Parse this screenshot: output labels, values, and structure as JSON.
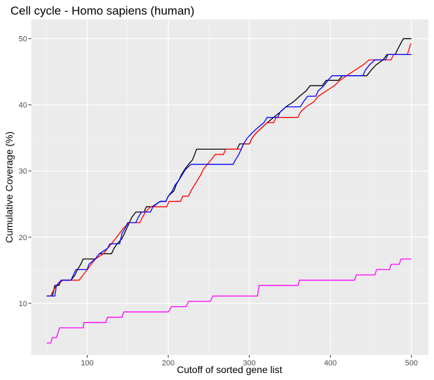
{
  "chart_data": {
    "type": "line",
    "title": "Cell cycle - Homo sapiens (human)",
    "xlabel": "Cutoff of sorted gene list",
    "ylabel": "Cumulative Coverage (%)",
    "xlim": [
      31,
      521
    ],
    "ylim": [
      2.2,
      52.9
    ],
    "x_ticks": [
      100,
      200,
      300,
      400,
      500
    ],
    "y_ticks": [
      10,
      20,
      30,
      40,
      50
    ],
    "grid": true,
    "legend": "none",
    "series": [
      {
        "color": "#000000",
        "points": [
          [
            50,
            11.1
          ],
          [
            57,
            11.1
          ],
          [
            60,
            12.7
          ],
          [
            65,
            12.7
          ],
          [
            68,
            13.5
          ],
          [
            80,
            13.5
          ],
          [
            85,
            14.3
          ],
          [
            88,
            15.1
          ],
          [
            92,
            15.9
          ],
          [
            95,
            16.7
          ],
          [
            110,
            16.7
          ],
          [
            115,
            17.5
          ],
          [
            130,
            17.5
          ],
          [
            133,
            18.3
          ],
          [
            137,
            19.0
          ],
          [
            143,
            19.8
          ],
          [
            146,
            20.6
          ],
          [
            149,
            21.4
          ],
          [
            152,
            22.2
          ],
          [
            155,
            23.0
          ],
          [
            160,
            23.8
          ],
          [
            170,
            23.8
          ],
          [
            173,
            24.6
          ],
          [
            180,
            24.6
          ],
          [
            190,
            25.4
          ],
          [
            197,
            25.4
          ],
          [
            200,
            26.2
          ],
          [
            207,
            27.0
          ],
          [
            210,
            28.0
          ],
          [
            213,
            28.6
          ],
          [
            216,
            29.4
          ],
          [
            220,
            30.2
          ],
          [
            225,
            31.0
          ],
          [
            230,
            31.7
          ],
          [
            235,
            33.3
          ],
          [
            285,
            33.3
          ],
          [
            288,
            34.1
          ],
          [
            300,
            34.1
          ],
          [
            303,
            34.9
          ],
          [
            308,
            35.7
          ],
          [
            315,
            36.5
          ],
          [
            322,
            37.3
          ],
          [
            330,
            38.1
          ],
          [
            338,
            38.9
          ],
          [
            345,
            39.7
          ],
          [
            355,
            40.5
          ],
          [
            362,
            41.3
          ],
          [
            370,
            42.1
          ],
          [
            375,
            42.9
          ],
          [
            390,
            42.9
          ],
          [
            395,
            43.7
          ],
          [
            410,
            43.7
          ],
          [
            415,
            44.4
          ],
          [
            445,
            44.4
          ],
          [
            450,
            45.2
          ],
          [
            456,
            46.0
          ],
          [
            465,
            46.8
          ],
          [
            470,
            47.6
          ],
          [
            480,
            47.6
          ],
          [
            483,
            48.4
          ],
          [
            490,
            50.0
          ],
          [
            500,
            50.0
          ]
        ]
      },
      {
        "color": "#ff0000",
        "points": [
          [
            50,
            11.1
          ],
          [
            55,
            11.1
          ],
          [
            58,
            11.9
          ],
          [
            62,
            12.7
          ],
          [
            70,
            13.5
          ],
          [
            90,
            13.5
          ],
          [
            95,
            14.3
          ],
          [
            100,
            15.1
          ],
          [
            105,
            15.9
          ],
          [
            110,
            16.7
          ],
          [
            120,
            17.5
          ],
          [
            125,
            18.3
          ],
          [
            130,
            19.0
          ],
          [
            135,
            19.8
          ],
          [
            140,
            20.6
          ],
          [
            145,
            21.4
          ],
          [
            152,
            22.2
          ],
          [
            165,
            22.2
          ],
          [
            168,
            23.0
          ],
          [
            172,
            23.8
          ],
          [
            178,
            24.6
          ],
          [
            198,
            24.6
          ],
          [
            201,
            25.4
          ],
          [
            215,
            25.4
          ],
          [
            218,
            26.2
          ],
          [
            225,
            26.2
          ],
          [
            228,
            27.0
          ],
          [
            232,
            27.8
          ],
          [
            236,
            28.6
          ],
          [
            240,
            29.4
          ],
          [
            243,
            30.2
          ],
          [
            248,
            31.0
          ],
          [
            253,
            31.7
          ],
          [
            258,
            32.5
          ],
          [
            268,
            32.5
          ],
          [
            271,
            33.3
          ],
          [
            290,
            33.3
          ],
          [
            293,
            34.1
          ],
          [
            300,
            34.1
          ],
          [
            303,
            34.9
          ],
          [
            308,
            35.7
          ],
          [
            315,
            36.5
          ],
          [
            322,
            37.3
          ],
          [
            330,
            37.3
          ],
          [
            333,
            38.1
          ],
          [
            360,
            38.1
          ],
          [
            363,
            38.9
          ],
          [
            370,
            39.7
          ],
          [
            380,
            40.5
          ],
          [
            385,
            41.3
          ],
          [
            395,
            42.1
          ],
          [
            405,
            42.9
          ],
          [
            412,
            43.7
          ],
          [
            420,
            44.4
          ],
          [
            430,
            45.2
          ],
          [
            440,
            46.0
          ],
          [
            448,
            46.8
          ],
          [
            475,
            46.8
          ],
          [
            478,
            47.6
          ],
          [
            495,
            47.6
          ],
          [
            497,
            48.4
          ],
          [
            499,
            49.2
          ],
          [
            500,
            49.2
          ]
        ]
      },
      {
        "color": "#0000ff",
        "points": [
          [
            50,
            11.1
          ],
          [
            60,
            11.1
          ],
          [
            62,
            12.7
          ],
          [
            68,
            13.5
          ],
          [
            80,
            13.5
          ],
          [
            83,
            14.3
          ],
          [
            86,
            15.1
          ],
          [
            100,
            15.1
          ],
          [
            102,
            15.9
          ],
          [
            110,
            16.7
          ],
          [
            115,
            17.5
          ],
          [
            125,
            18.3
          ],
          [
            128,
            19.0
          ],
          [
            140,
            19.0
          ],
          [
            143,
            20.6
          ],
          [
            147,
            21.4
          ],
          [
            150,
            22.2
          ],
          [
            160,
            22.2
          ],
          [
            163,
            23.0
          ],
          [
            167,
            23.8
          ],
          [
            178,
            23.8
          ],
          [
            181,
            24.6
          ],
          [
            190,
            25.4
          ],
          [
            197,
            25.4
          ],
          [
            200,
            26.2
          ],
          [
            205,
            27.0
          ],
          [
            208,
            27.8
          ],
          [
            213,
            28.6
          ],
          [
            217,
            29.4
          ],
          [
            221,
            30.2
          ],
          [
            228,
            31.0
          ],
          [
            280,
            31.0
          ],
          [
            283,
            31.7
          ],
          [
            287,
            32.5
          ],
          [
            290,
            33.3
          ],
          [
            293,
            34.1
          ],
          [
            297,
            34.9
          ],
          [
            303,
            35.7
          ],
          [
            310,
            36.5
          ],
          [
            318,
            37.3
          ],
          [
            322,
            38.1
          ],
          [
            335,
            38.1
          ],
          [
            338,
            38.9
          ],
          [
            345,
            39.7
          ],
          [
            363,
            39.7
          ],
          [
            367,
            40.5
          ],
          [
            372,
            41.3
          ],
          [
            382,
            41.3
          ],
          [
            385,
            42.1
          ],
          [
            392,
            42.9
          ],
          [
            397,
            43.7
          ],
          [
            402,
            44.4
          ],
          [
            440,
            44.4
          ],
          [
            443,
            45.2
          ],
          [
            448,
            46.0
          ],
          [
            455,
            46.8
          ],
          [
            468,
            46.8
          ],
          [
            471,
            47.6
          ],
          [
            500,
            47.6
          ]
        ]
      },
      {
        "color": "#ff00ff",
        "points": [
          [
            50,
            4.0
          ],
          [
            55,
            4.0
          ],
          [
            57,
            4.8
          ],
          [
            62,
            4.8
          ],
          [
            64,
            5.6
          ],
          [
            66,
            6.3
          ],
          [
            95,
            6.3
          ],
          [
            96,
            7.1
          ],
          [
            123,
            7.1
          ],
          [
            125,
            7.9
          ],
          [
            143,
            7.9
          ],
          [
            145,
            8.7
          ],
          [
            200,
            8.7
          ],
          [
            204,
            9.5
          ],
          [
            222,
            9.5
          ],
          [
            225,
            10.3
          ],
          [
            252,
            10.3
          ],
          [
            255,
            11.1
          ],
          [
            310,
            11.1
          ],
          [
            312,
            12.7
          ],
          [
            360,
            12.7
          ],
          [
            362,
            13.5
          ],
          [
            430,
            13.5
          ],
          [
            432,
            14.3
          ],
          [
            455,
            14.3
          ],
          [
            457,
            15.1
          ],
          [
            473,
            15.1
          ],
          [
            475,
            15.9
          ],
          [
            485,
            15.9
          ],
          [
            487,
            16.7
          ],
          [
            500,
            16.7
          ]
        ]
      }
    ]
  }
}
